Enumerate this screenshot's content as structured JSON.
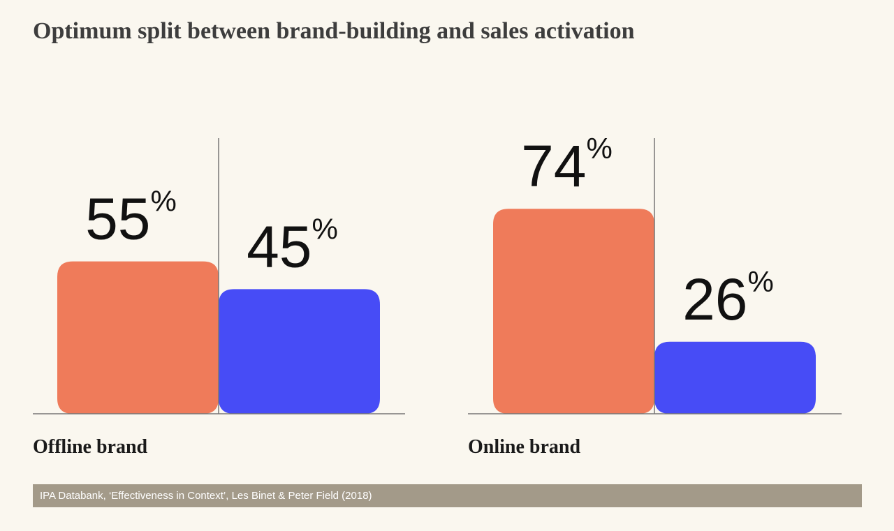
{
  "title": "Optimum split between brand-building and sales activation",
  "source": "IPA Databank, ‘Effectiveness in Context’, Les Binet & Peter Field (2018)",
  "colors": {
    "background": "#faf7ef",
    "brand_building": "#ef7b5a",
    "sales_activation": "#474cf6",
    "axis": "#777777",
    "source_bar": "#a39a89"
  },
  "chart_data": {
    "type": "bar",
    "title": "Optimum split between brand-building and sales activation",
    "categories": [
      "Offline brand",
      "Online brand"
    ],
    "value_suffix": "%",
    "series": [
      {
        "values": [
          55,
          45
        ]
      },
      {
        "values": [
          74,
          26
        ]
      }
    ],
    "groups": [
      {
        "label": "Offline brand",
        "values": [
          55,
          45
        ],
        "display": [
          "55",
          "45"
        ]
      },
      {
        "label": "Online brand",
        "values": [
          74,
          26
        ],
        "display": [
          "74",
          "26"
        ]
      }
    ],
    "ylim": [
      0,
      100
    ],
    "grid": false,
    "legend": "none"
  }
}
